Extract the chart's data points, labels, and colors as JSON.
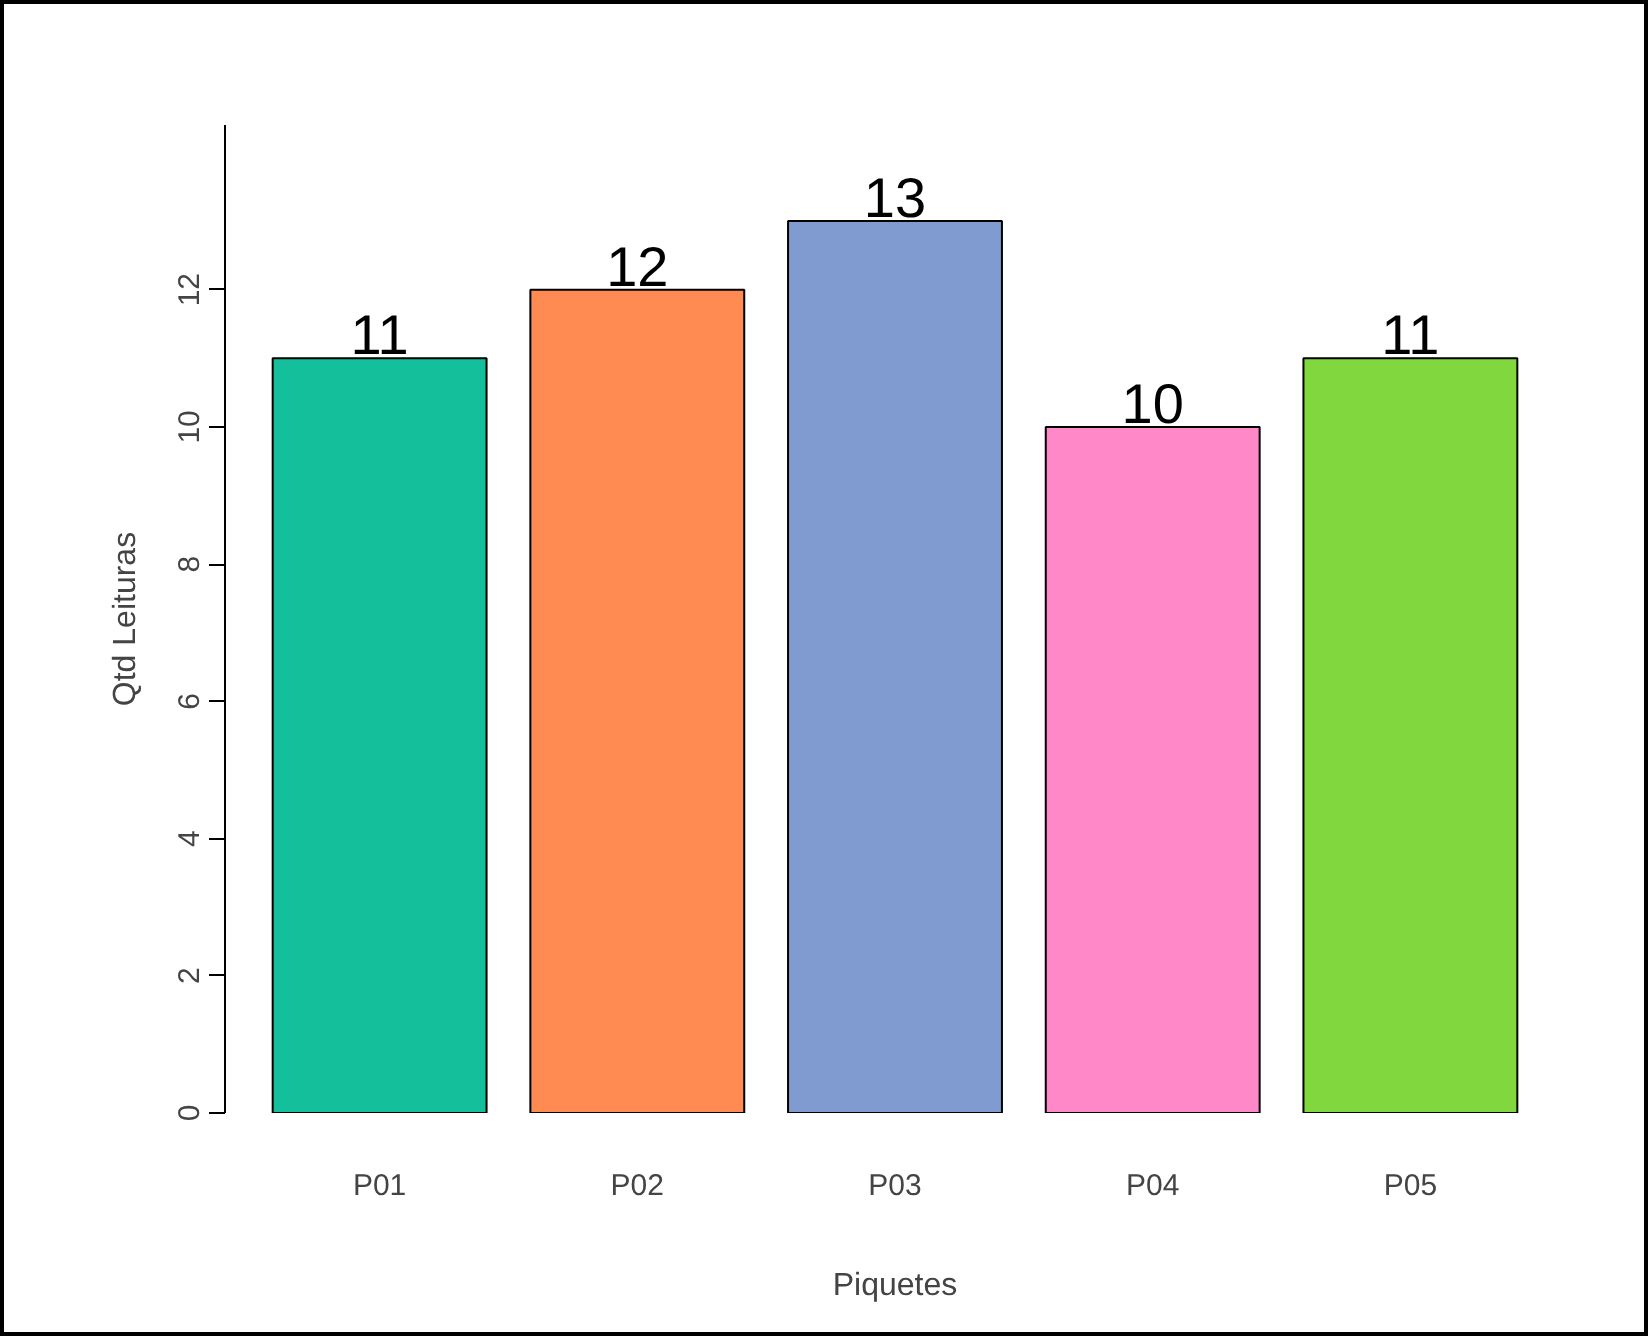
{
  "chart_data": {
    "type": "bar",
    "xlabel": "Piquetes",
    "ylabel": "Qtd Leituras",
    "categories": [
      "P01",
      "P02",
      "P03",
      "P04",
      "P05"
    ],
    "values": [
      11,
      12,
      13,
      10,
      11
    ],
    "colors": [
      "#14bf9b",
      "#ff8a52",
      "#7f9bd0",
      "#ff88c8",
      "#80d83e"
    ],
    "ylim": [
      0,
      14.4
    ],
    "yticks": [
      0,
      2,
      4,
      6,
      8,
      10,
      12
    ],
    "data_labels": true
  }
}
